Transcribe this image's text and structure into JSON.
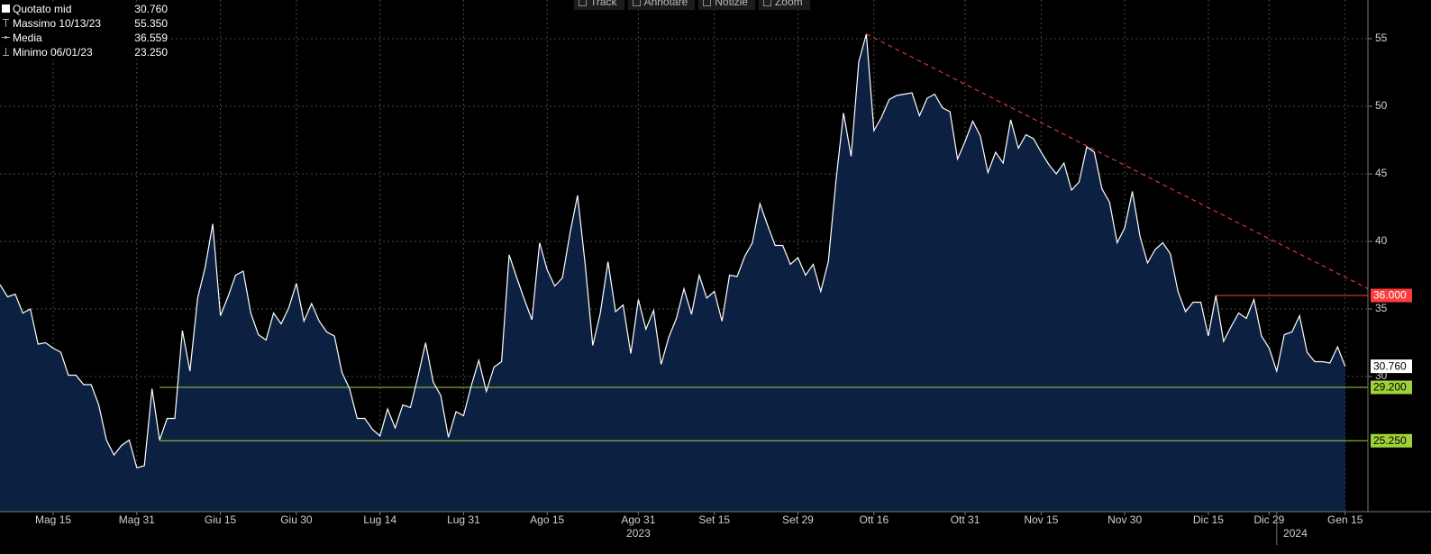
{
  "chart_data": {
    "type": "line",
    "legend": [
      {
        "name": "Quotato mid",
        "value": "30.760"
      },
      {
        "name": "Massimo 10/13/23",
        "value": "55.350"
      },
      {
        "name": "Media",
        "value": "36.559"
      },
      {
        "name": "Minimo 06/01/23",
        "value": "23.250"
      }
    ],
    "toolbar": [
      "Track",
      "Annotare",
      "Notizie",
      "Zoom"
    ],
    "categories": [
      null,
      null,
      null,
      null,
      null,
      null,
      null,
      "Mag 15",
      null,
      null,
      null,
      null,
      null,
      null,
      null,
      null,
      null,
      null,
      "Mag 31",
      null,
      null,
      null,
      null,
      null,
      null,
      null,
      null,
      null,
      null,
      "Giu 15",
      null,
      null,
      null,
      null,
      null,
      null,
      null,
      null,
      null,
      "Giu 30",
      null,
      null,
      null,
      null,
      null,
      null,
      null,
      null,
      null,
      null,
      "Lug 14",
      null,
      null,
      null,
      null,
      null,
      null,
      null,
      null,
      null,
      null,
      "Lug 31",
      null,
      null,
      null,
      null,
      null,
      null,
      null,
      null,
      null,
      null,
      "Ago 15",
      null,
      null,
      null,
      null,
      null,
      null,
      null,
      null,
      null,
      null,
      null,
      "Ago 31",
      null,
      null,
      null,
      null,
      null,
      null,
      null,
      null,
      null,
      "Set 15",
      null,
      null,
      null,
      null,
      null,
      null,
      null,
      null,
      null,
      null,
      "Set 29",
      null,
      null,
      null,
      null,
      null,
      null,
      null,
      null,
      null,
      "Ott 16",
      null,
      null,
      null,
      null,
      null,
      null,
      null,
      null,
      null,
      null,
      null,
      "Ott 31",
      null,
      null,
      null,
      null,
      null,
      null,
      null,
      null,
      null,
      "Nov 15",
      null,
      null,
      null,
      null,
      null,
      null,
      null,
      null,
      null,
      null,
      "Nov 30",
      null,
      null,
      null,
      null,
      null,
      null,
      null,
      null,
      null,
      null,
      "Dic 15",
      null,
      null,
      null,
      null,
      null,
      null,
      null,
      "Dic 29",
      null,
      null,
      null,
      null,
      null,
      null,
      null,
      null,
      null,
      "Gen 15"
    ],
    "years": [
      {
        "label": "2023",
        "x": 84
      },
      {
        "label": "2024",
        "x": 174
      }
    ],
    "year_break": 168,
    "series": [
      {
        "name": "Quotato mid",
        "color": "#ffffff",
        "fill": "#0c2142",
        "values": [
          36.8,
          35.9,
          36.1,
          34.7,
          35.0,
          32.4,
          32.5,
          32.1,
          31.8,
          30.1,
          30.1,
          29.4,
          29.4,
          27.9,
          25.3,
          24.2,
          24.9,
          25.3,
          23.25,
          23.4,
          29.1,
          25.3,
          26.9,
          26.9,
          33.4,
          30.4,
          35.8,
          38.1,
          41.3,
          34.5,
          35.9,
          37.5,
          37.8,
          34.7,
          33.1,
          32.7,
          34.7,
          33.9,
          35.1,
          36.9,
          34.1,
          35.4,
          34.1,
          33.3,
          33.0,
          30.3,
          29.1,
          26.9,
          26.9,
          26.1,
          25.6,
          27.6,
          26.2,
          27.9,
          27.7,
          30.0,
          32.5,
          29.6,
          28.6,
          25.5,
          27.4,
          27.1,
          29.3,
          31.2,
          28.9,
          30.7,
          31.1,
          39.0,
          37.3,
          35.7,
          34.2,
          39.9,
          37.9,
          36.7,
          37.3,
          40.6,
          43.4,
          38.3,
          32.3,
          34.7,
          38.5,
          34.8,
          35.3,
          31.7,
          35.7,
          33.5,
          34.9,
          30.9,
          32.9,
          34.3,
          36.5,
          34.6,
          37.5,
          35.8,
          36.3,
          34.1,
          37.5,
          37.4,
          38.9,
          39.9,
          42.8,
          41.2,
          39.7,
          39.7,
          38.3,
          38.8,
          37.5,
          38.3,
          36.3,
          38.5,
          44.5,
          49.5,
          46.3,
          53.3,
          55.35,
          48.2,
          49.2,
          50.5,
          50.8,
          50.9,
          51.0,
          49.3,
          50.6,
          50.9,
          49.9,
          49.6,
          46.1,
          47.4,
          48.9,
          47.8,
          45.1,
          46.6,
          45.8,
          49.0,
          46.9,
          47.9,
          47.6,
          46.6,
          45.7,
          45.0,
          45.8,
          43.8,
          44.4,
          47.0,
          46.6,
          43.9,
          42.9,
          39.9,
          41.0,
          43.7,
          40.4,
          38.4,
          39.4,
          39.9,
          39.1,
          36.3,
          34.8,
          35.5,
          35.5,
          33.0,
          36.0,
          32.6,
          33.7,
          34.7,
          34.3,
          35.7,
          33.0,
          32.1,
          30.4,
          33.1,
          33.3,
          34.5,
          31.8,
          31.1,
          31.1,
          31.0,
          32.2,
          30.76
        ],
        "last_label": "30.760"
      }
    ],
    "levels": [
      {
        "value": 36,
        "label": "36.000",
        "color": "#ff3b3b",
        "from": 160
      },
      {
        "value": 29.2,
        "label": "29.200",
        "color": "#9fd23a",
        "from": 21
      },
      {
        "value": 25.25,
        "label": "25.250",
        "color": "#9fd23a",
        "from": 21
      }
    ],
    "trendline": {
      "x": [
        114,
        180
      ],
      "values": [
        55.35,
        36.5
      ],
      "color": "#ff4040"
    },
    "ylim": [
      20,
      58
    ],
    "yticks": [
      30,
      35,
      40,
      45,
      50,
      55
    ],
    "grid": true
  }
}
